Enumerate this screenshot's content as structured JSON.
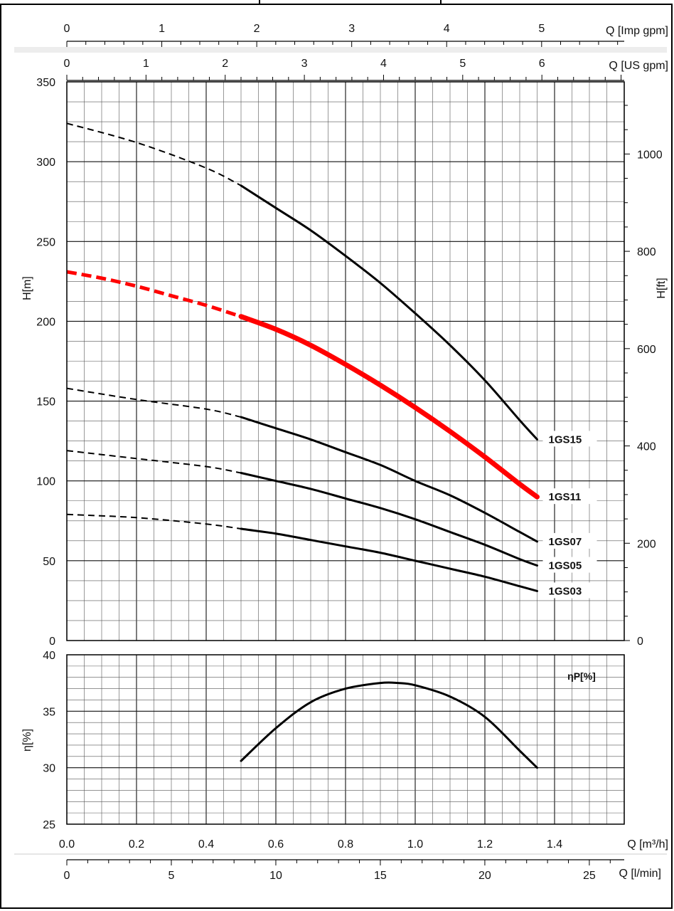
{
  "chart_data": [
    {
      "type": "line",
      "panel": "head",
      "x_axis_primary": {
        "label": "Q [m³/h]",
        "lim": [
          0,
          1.6
        ],
        "ticks": [
          "0.0",
          "0.2",
          "0.4",
          "0.6",
          "0.8",
          "1.0",
          "1.2",
          "1.4"
        ]
      },
      "x_axis_secondary": [
        {
          "label": "Q [l/min]",
          "lim": [
            0,
            26.67
          ],
          "ticks": [
            "0",
            "5",
            "10",
            "15",
            "20",
            "25"
          ]
        },
        {
          "label": "Q [US gpm]",
          "lim": [
            0,
            7.04
          ],
          "ticks": [
            "0",
            "1",
            "2",
            "3",
            "4",
            "5",
            "6"
          ]
        },
        {
          "label": "Q [Imp gpm]",
          "lim": [
            0,
            5.87
          ],
          "ticks": [
            "0",
            "1",
            "2",
            "3",
            "4",
            "5"
          ]
        }
      ],
      "ylabel": "H[m]",
      "ylim": [
        0,
        350
      ],
      "yticks": [
        "0",
        "50",
        "100",
        "150",
        "200",
        "250",
        "300",
        "350"
      ],
      "ylabel_right": "H[ft]",
      "yticks_right": [
        "0",
        "200",
        "400",
        "600",
        "800",
        "1000"
      ],
      "grid": true,
      "series": [
        {
          "name": "1GS15",
          "color": "#000000",
          "highlight": false,
          "dashed": {
            "x": [
              0.0,
              0.2,
              0.4,
              0.5
            ],
            "y": [
              324,
              312,
              296,
              285
            ]
          },
          "x": [
            0.5,
            0.6,
            0.7,
            0.8,
            0.9,
            1.0,
            1.1,
            1.2,
            1.3,
            1.35
          ],
          "y": [
            285,
            271,
            257,
            241,
            224,
            205,
            185,
            163,
            138,
            126
          ]
        },
        {
          "name": "1GS11",
          "color": "#ff0000",
          "highlight": true,
          "dashed": {
            "x": [
              0.0,
              0.1,
              0.2,
              0.3,
              0.4,
              0.5
            ],
            "y": [
              231,
              227,
              222,
              216,
              210,
              203
            ]
          },
          "x": [
            0.5,
            0.6,
            0.7,
            0.8,
            0.9,
            1.0,
            1.1,
            1.2,
            1.3,
            1.35
          ],
          "y": [
            203,
            195,
            185,
            173,
            160,
            146,
            131,
            115,
            98,
            90
          ]
        },
        {
          "name": "1GS07",
          "color": "#000000",
          "highlight": false,
          "dashed": {
            "x": [
              0.0,
              0.2,
              0.4,
              0.5
            ],
            "y": [
              158,
              151,
              145,
              140
            ]
          },
          "x": [
            0.5,
            0.6,
            0.7,
            0.8,
            0.9,
            1.0,
            1.1,
            1.2,
            1.3,
            1.35
          ],
          "y": [
            140,
            133,
            126,
            118,
            110,
            100,
            91,
            80,
            68,
            62
          ]
        },
        {
          "name": "1GS05",
          "color": "#000000",
          "highlight": false,
          "dashed": {
            "x": [
              0.0,
              0.2,
              0.4,
              0.5
            ],
            "y": [
              119,
              114,
              109,
              105
            ]
          },
          "x": [
            0.5,
            0.6,
            0.7,
            0.8,
            0.9,
            1.0,
            1.1,
            1.2,
            1.3,
            1.35
          ],
          "y": [
            105,
            100,
            95,
            89,
            83,
            76,
            68,
            60,
            51,
            47
          ]
        },
        {
          "name": "1GS03",
          "color": "#000000",
          "highlight": false,
          "dashed": {
            "x": [
              0.0,
              0.2,
              0.4,
              0.5
            ],
            "y": [
              79,
              77,
              73,
              70
            ]
          },
          "x": [
            0.5,
            0.6,
            0.7,
            0.8,
            0.9,
            1.0,
            1.1,
            1.2,
            1.3,
            1.35
          ],
          "y": [
            70,
            67,
            63,
            59,
            55,
            50,
            45,
            40,
            34,
            31
          ]
        }
      ]
    },
    {
      "type": "line",
      "panel": "efficiency",
      "xlabel": "Q [m³/h]",
      "xlim": [
        0,
        1.6
      ],
      "ylabel": "η[%]",
      "ylim": [
        25,
        40
      ],
      "yticks": [
        "25",
        "30",
        "35",
        "40"
      ],
      "annotation": "ηP[%]",
      "grid": true,
      "series": [
        {
          "color": "#000000",
          "x": [
            0.5,
            0.6,
            0.7,
            0.8,
            0.9,
            0.95,
            1.0,
            1.1,
            1.2,
            1.3,
            1.35
          ],
          "y": [
            30.6,
            33.5,
            35.8,
            37.0,
            37.5,
            37.5,
            37.3,
            36.3,
            34.5,
            31.5,
            30.0
          ]
        }
      ]
    }
  ]
}
